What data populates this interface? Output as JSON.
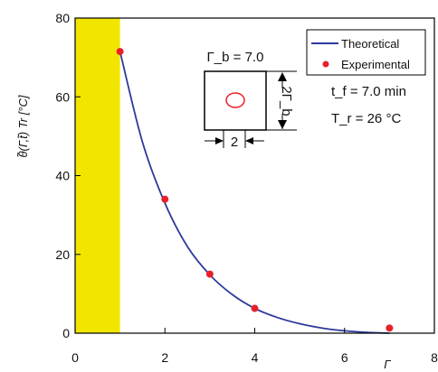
{
  "chart_data": {
    "type": "scatter",
    "title": "",
    "xlabel": "Γ",
    "ylabel": "θ̃(Γ,t̃) Tr [°C]",
    "xlim": [
      0,
      8
    ],
    "ylim": [
      0,
      80
    ],
    "x_ticks": [
      "0",
      "2",
      "4",
      "6",
      "8"
    ],
    "y_ticks": [
      "0",
      "20",
      "40",
      "60",
      "80"
    ],
    "x_tick_values": [
      0,
      2,
      4,
      6,
      8
    ],
    "y_tick_values": [
      0,
      20,
      40,
      60,
      80
    ],
    "grid": false,
    "legend_position": "top-right",
    "highlight_region": {
      "x": [
        0,
        1
      ],
      "color": "#f2e600"
    },
    "series": [
      {
        "name": "Theoretical",
        "kind": "line",
        "color": "#2b3a9b",
        "x": [
          1.0,
          1.5,
          2.0,
          2.5,
          3.0,
          3.5,
          4.0,
          4.5,
          5.0,
          5.5,
          6.0,
          6.5,
          7.0
        ],
        "y": [
          71.5,
          48.5,
          33.0,
          22.0,
          14.8,
          9.8,
          6.3,
          4.0,
          2.4,
          1.3,
          0.6,
          0.2,
          0.0
        ]
      },
      {
        "name": "Experimental",
        "kind": "scatter",
        "color": "#e8202a",
        "x": [
          1.0,
          2.0,
          3.0,
          4.0,
          7.0
        ],
        "y": [
          71.5,
          34.0,
          15.0,
          6.3,
          1.3
        ]
      }
    ],
    "annotations": {
      "gamma_b": "Γ_b = 7.0",
      "two_gamma_b": "2Γ_b",
      "two": "2",
      "tf": "t_f = 7.0 min",
      "tr": "T_r = 26 °C"
    }
  }
}
